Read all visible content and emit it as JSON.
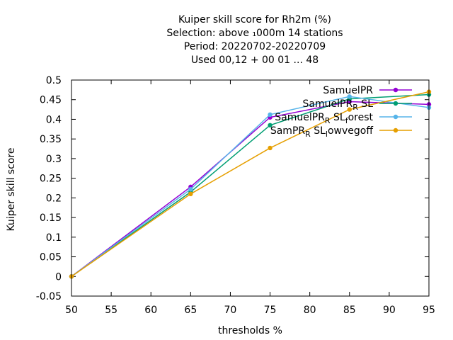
{
  "chart_data": {
    "type": "line",
    "title_lines": [
      "Kuiper skill score  for Rh2m (%)",
      "Selection: above ₁000m     14 stations",
      "Period: 20220702-20220709",
      "Used  00,12  + 00 01 ... 48"
    ],
    "xlabel": "thresholds %",
    "ylabel": "Kuiper skill score",
    "xlim": [
      50,
      95
    ],
    "ylim": [
      -0.05,
      0.5
    ],
    "xticks": [
      50,
      55,
      60,
      65,
      70,
      75,
      80,
      85,
      90,
      95
    ],
    "yticks": [
      -0.05,
      0,
      0.05,
      0.1,
      0.15,
      0.2,
      0.25,
      0.3,
      0.35,
      0.4,
      0.45,
      0.5
    ],
    "ytick_labels": [
      "-0.05",
      "0",
      "0.05",
      "0.1",
      "0.15",
      "0.2",
      "0.25",
      "0.3",
      "0.35",
      "0.4",
      "0.45",
      "0.5"
    ],
    "legend_position": "top-right",
    "series": [
      {
        "name": "SamuelPR",
        "color": "#9400d3",
        "x": [
          50,
          65,
          75,
          85,
          95
        ],
        "y": [
          0.0,
          0.228,
          0.405,
          0.445,
          0.438
        ]
      },
      {
        "name": "SamuelPR_R SL",
        "color": "#009e73",
        "x": [
          50,
          65,
          75,
          85,
          95
        ],
        "y": [
          0.0,
          0.215,
          0.385,
          0.452,
          0.463
        ]
      },
      {
        "name": "SamuelPR_R SL_forest",
        "color": "#56b4e9",
        "x": [
          50,
          65,
          75,
          85,
          95
        ],
        "y": [
          0.0,
          0.222,
          0.412,
          0.458,
          0.43
        ]
      },
      {
        "name": "SamPR_R SL_lowvegoff",
        "color": "#e69f00",
        "x": [
          50,
          65,
          75,
          85,
          95
        ],
        "y": [
          0.0,
          0.21,
          0.327,
          0.425,
          0.47
        ]
      }
    ]
  }
}
